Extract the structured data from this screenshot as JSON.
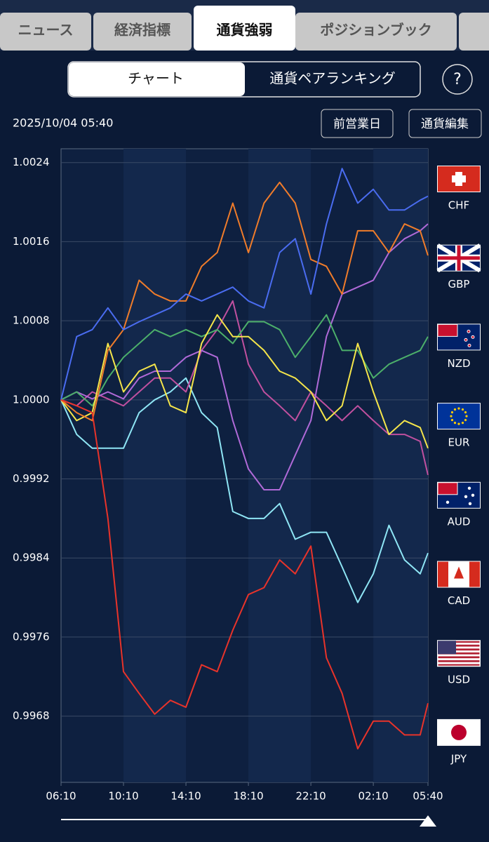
{
  "tabs": [
    "ニュース",
    "経済指標",
    "通貨強弱",
    "ポジションブック"
  ],
  "segments": [
    "チャート",
    "通貨ペアランキング"
  ],
  "help": "?",
  "timestamp": "2025/10/04 05:40",
  "buttons": [
    "前営業日",
    "通貨編集"
  ],
  "chart_data": {
    "type": "line",
    "x": [
      0,
      1,
      2,
      3,
      4,
      5,
      6,
      7,
      8,
      9,
      10,
      11,
      12,
      13,
      14,
      15,
      16,
      17,
      18,
      19,
      20,
      21,
      22,
      23,
      23.5
    ],
    "xlim": [
      0,
      23.5
    ],
    "xticks": [
      {
        "value": 0,
        "label": "06:10"
      },
      {
        "value": 4,
        "label": "10:10"
      },
      {
        "value": 8,
        "label": "14:10"
      },
      {
        "value": 12,
        "label": "18:10"
      },
      {
        "value": 16,
        "label": "22:10"
      },
      {
        "value": 20,
        "label": "02:10"
      },
      {
        "value": 23.5,
        "label": "05:40"
      }
    ],
    "ylim": [
      0.99613,
      1.00254
    ],
    "yticks": [
      1.0024,
      1.0016,
      1.0008,
      {
        "value": 1,
        "label": "1.0000"
      },
      0.9992,
      0.9984,
      0.9976,
      0.9968
    ],
    "grid": true,
    "legend": [
      "CHF",
      "GBP",
      "NZD",
      "EUR",
      "AUD",
      "CAD",
      "USD",
      "JPY"
    ],
    "series": [
      {
        "color": "#8fe6f5",
        "values": [
          1.0,
          0.99965,
          0.99951,
          0.99951,
          0.99951,
          0.99987,
          1.0,
          1.00008,
          1.00022,
          0.99987,
          0.99972,
          0.99887,
          0.9988,
          0.9988,
          0.99895,
          0.99859,
          0.99866,
          0.99866,
          0.99831,
          0.99795,
          0.99824,
          0.99873,
          0.99838,
          0.99824,
          0.99845
        ]
      },
      {
        "color": "#c0509f",
        "values": [
          1.0,
          0.99994,
          1.00008,
          1.00001,
          0.99994,
          1.00008,
          1.00022,
          1.00022,
          1.00008,
          1.0005,
          1.00071,
          1.001,
          1.00036,
          1.00008,
          0.99994,
          0.99979,
          1.00008,
          0.99994,
          0.99979,
          0.99994,
          0.99979,
          0.99965,
          0.99965,
          0.99958,
          0.99924
        ]
      },
      {
        "color": "#b06ad8",
        "values": [
          1.0,
          1.00008,
          1.00001,
          1.00008,
          1.00001,
          1.00022,
          1.00029,
          1.00029,
          1.00043,
          1.0005,
          1.00043,
          0.99979,
          0.9993,
          0.99909,
          0.99909,
          0.99944,
          0.99979,
          1.00064,
          1.00107,
          1.00114,
          1.00121,
          1.00149,
          1.00163,
          1.00171,
          1.00178
        ]
      },
      {
        "color": "#4caf6a",
        "values": [
          1.0,
          1.00008,
          0.99994,
          1.00022,
          1.00043,
          1.00057,
          1.00071,
          1.00064,
          1.00071,
          1.00064,
          1.00071,
          1.00057,
          1.00079,
          1.00079,
          1.00071,
          1.00043,
          1.00064,
          1.00086,
          1.0005,
          1.0005,
          1.00022,
          1.00036,
          1.00043,
          1.0005,
          1.00064
        ]
      },
      {
        "color": "#f5e54a",
        "values": [
          1.0,
          0.99979,
          0.99987,
          1.00057,
          1.00008,
          1.00029,
          1.00036,
          0.99994,
          0.99987,
          1.00057,
          1.00086,
          1.00064,
          1.00064,
          1.0005,
          1.00029,
          1.00022,
          1.00008,
          0.99979,
          0.99994,
          1.00057,
          1.00008,
          0.99965,
          0.99979,
          0.99972,
          0.99951
        ]
      },
      {
        "color": "#f07c2a",
        "values": [
          1.0,
          0.99987,
          0.99979,
          1.0005,
          1.00071,
          1.00121,
          1.00107,
          1.001,
          1.001,
          1.00135,
          1.00149,
          1.00199,
          1.00149,
          1.00199,
          1.0022,
          1.00199,
          1.00142,
          1.00135,
          1.00107,
          1.00171,
          1.00171,
          1.00149,
          1.00178,
          1.00171,
          1.00146
        ]
      },
      {
        "color": "#4a6cf0",
        "values": [
          1.0,
          1.00064,
          1.00071,
          1.00093,
          1.00071,
          1.00079,
          1.00086,
          1.00093,
          1.00107,
          1.001,
          1.00107,
          1.00114,
          1.001,
          1.00093,
          1.00149,
          1.00163,
          1.00107,
          1.00178,
          1.00234,
          1.00199,
          1.00213,
          1.00192,
          1.00192,
          1.00202,
          1.00206
        ]
      },
      {
        "color": "#e8332a",
        "values": [
          1.0,
          0.99994,
          0.99987,
          0.9988,
          0.99725,
          0.99703,
          0.99682,
          0.99696,
          0.99689,
          0.99732,
          0.99725,
          0.99767,
          0.99803,
          0.9981,
          0.99838,
          0.99824,
          0.99852,
          0.99739,
          0.99703,
          0.99647,
          0.99675,
          0.99675,
          0.99661,
          0.99661,
          0.99693
        ]
      }
    ]
  }
}
